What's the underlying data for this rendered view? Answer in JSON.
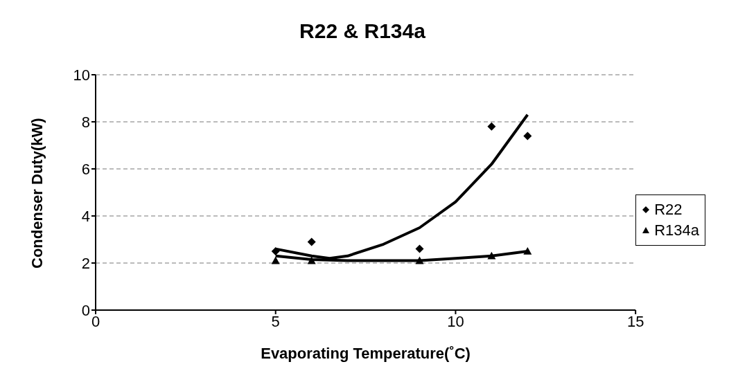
{
  "chart_data": {
    "type": "scatter",
    "title": "R22 & R134a",
    "xlabel": "Evaporating Temperature(˚C)",
    "ylabel": "Condenser Duty(kW)",
    "x": [
      5,
      6,
      9,
      11,
      12
    ],
    "series": [
      {
        "name": "R22",
        "color": "#000000",
        "marker": "diamond",
        "values": [
          2.5,
          2.9,
          2.6,
          7.8,
          7.4
        ]
      },
      {
        "name": "R134a",
        "color": "#000000",
        "marker": "triangle",
        "values": [
          2.1,
          2.1,
          2.1,
          2.3,
          2.5
        ]
      },
      {
        "type": "line",
        "color": "#000000",
        "marker": "none",
        "x": [
          5,
          6,
          6.5,
          7,
          8,
          9,
          10,
          11,
          12
        ],
        "values": [
          2.6,
          2.3,
          2.2,
          2.3,
          2.8,
          3.5,
          4.6,
          6.2,
          8.3
        ]
      },
      {
        "type": "line",
        "color": "#000000",
        "marker": "none",
        "x": [
          5,
          6,
          7,
          8,
          9,
          10,
          11,
          12
        ],
        "values": [
          2.3,
          2.15,
          2.1,
          2.1,
          2.1,
          2.2,
          2.3,
          2.5
        ]
      }
    ],
    "xlim": [
      0,
      15
    ],
    "xticks": [
      0,
      5,
      10,
      15
    ],
    "ylim": [
      0,
      10
    ],
    "yticks": [
      0,
      2,
      4,
      6,
      8,
      10
    ],
    "grid": "y",
    "legend": "right"
  }
}
